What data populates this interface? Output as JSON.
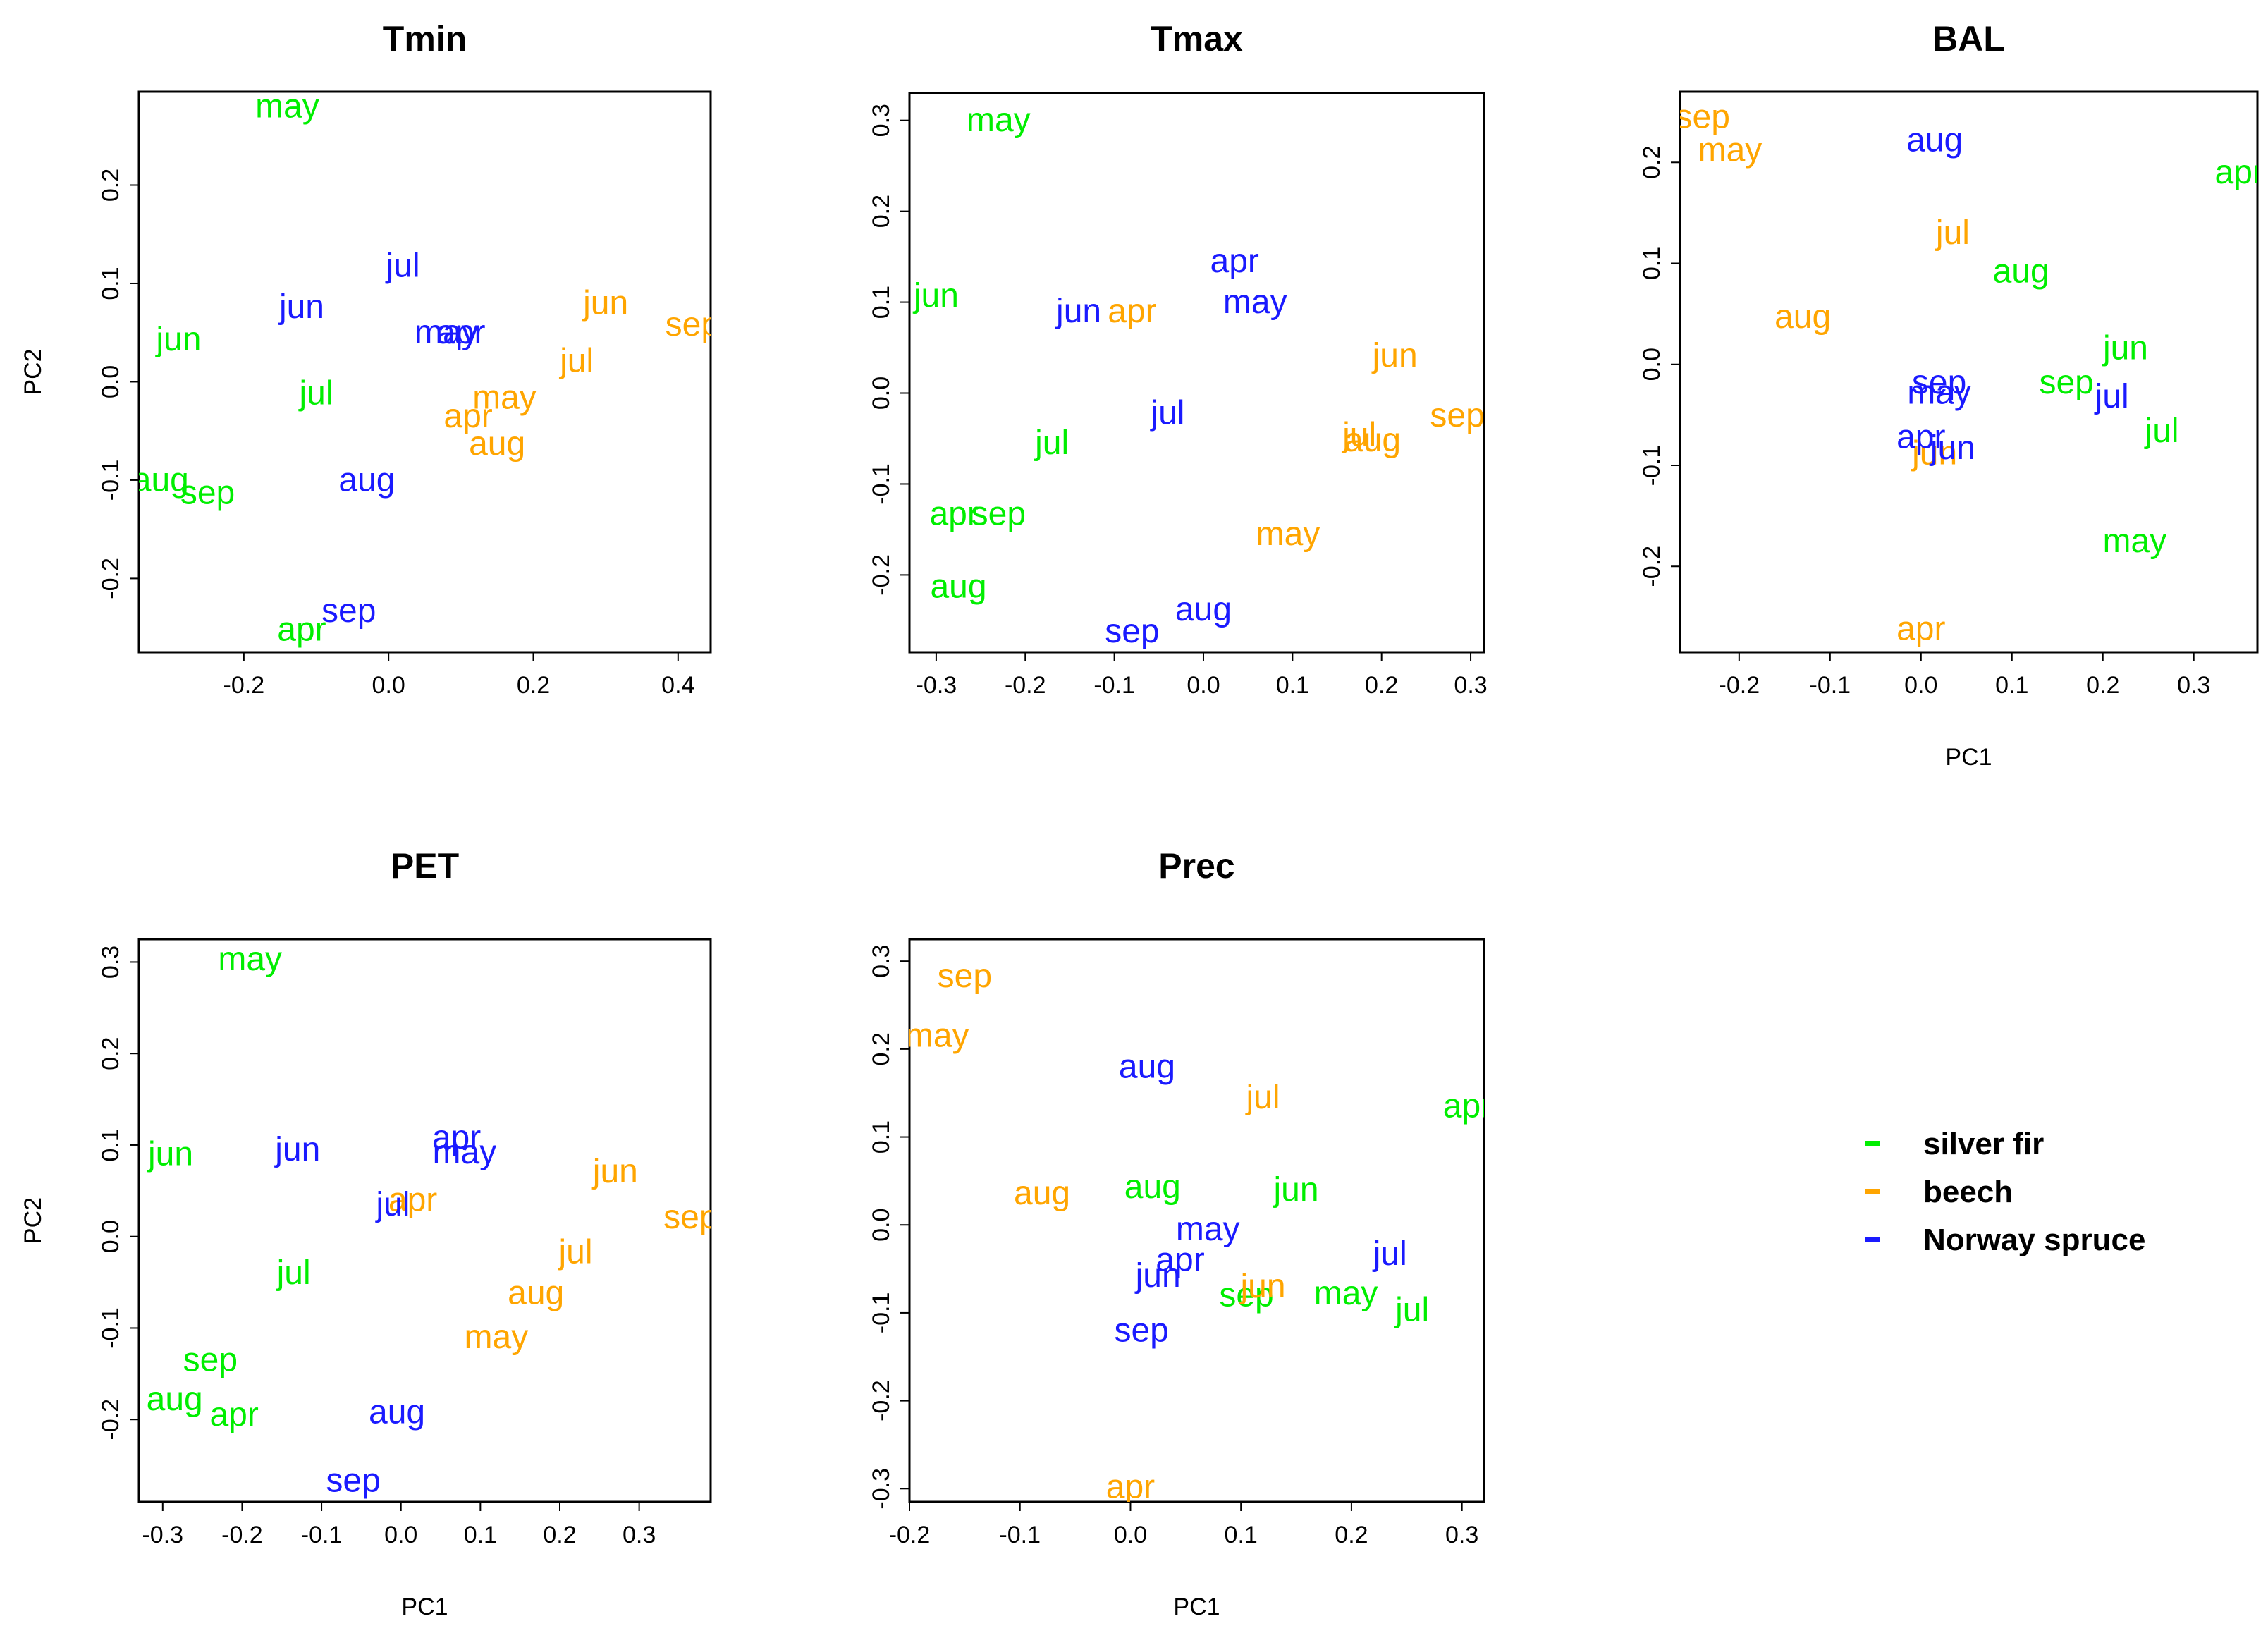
{
  "colors": {
    "silver fir": "#00ee00",
    "beech": "#ffa500",
    "Norway spruce": "#1a1aff"
  },
  "legend": {
    "items": [
      {
        "name": "silver fir",
        "color": "#00ee00"
      },
      {
        "name": "beech",
        "color": "#ffa500"
      },
      {
        "name": "Norway spruce",
        "color": "#1a1aff"
      }
    ],
    "placement": "right, bottom row"
  },
  "chart_data": [
    {
      "type": "scatter",
      "title": "Tmin",
      "xlabel": "",
      "ylabel": "PC2",
      "xlim": [
        -0.345,
        0.445
      ],
      "ylim": [
        -0.275,
        0.295
      ],
      "xticks": [
        -0.2,
        0.0,
        0.2,
        0.4
      ],
      "yticks": [
        -0.2,
        -0.1,
        0.0,
        0.1,
        0.2
      ],
      "series": [
        {
          "name": "silver fir",
          "points": [
            {
              "label": "may",
              "x": -0.14,
              "y": 0.28
            },
            {
              "label": "jun",
              "x": -0.29,
              "y": 0.043
            },
            {
              "label": "jul",
              "x": -0.1,
              "y": -0.012
            },
            {
              "label": "aug",
              "x": -0.315,
              "y": -0.1
            },
            {
              "label": "sep",
              "x": -0.25,
              "y": -0.113
            },
            {
              "label": "apr",
              "x": -0.12,
              "y": -0.252
            }
          ]
        },
        {
          "name": "beech",
          "points": [
            {
              "label": "jun",
              "x": 0.3,
              "y": 0.08
            },
            {
              "label": "sep",
              "x": 0.42,
              "y": 0.058
            },
            {
              "label": "jul",
              "x": 0.26,
              "y": 0.021
            },
            {
              "label": "may",
              "x": 0.16,
              "y": -0.016
            },
            {
              "label": "apr",
              "x": 0.11,
              "y": -0.035
            },
            {
              "label": "aug",
              "x": 0.15,
              "y": -0.063
            }
          ]
        },
        {
          "name": "Norway spruce",
          "points": [
            {
              "label": "jul",
              "x": 0.02,
              "y": 0.118
            },
            {
              "label": "jun",
              "x": -0.12,
              "y": 0.076
            },
            {
              "label": "may",
              "x": 0.08,
              "y": 0.05
            },
            {
              "label": "apr",
              "x": 0.1,
              "y": 0.05
            },
            {
              "label": "aug",
              "x": -0.03,
              "y": -0.1
            },
            {
              "label": "sep",
              "x": -0.055,
              "y": -0.233
            }
          ]
        }
      ]
    },
    {
      "type": "scatter",
      "title": "Tmax",
      "xlabel": "",
      "ylabel": "",
      "xlim": [
        -0.33,
        0.315
      ],
      "ylim": [
        -0.285,
        0.33
      ],
      "xticks": [
        -0.3,
        -0.2,
        -0.1,
        0.0,
        0.1,
        0.2,
        0.3
      ],
      "yticks": [
        -0.2,
        -0.1,
        0.0,
        0.1,
        0.2,
        0.3
      ],
      "series": [
        {
          "name": "silver fir",
          "points": [
            {
              "label": "may",
              "x": -0.23,
              "y": 0.3
            },
            {
              "label": "jun",
              "x": -0.3,
              "y": 0.107
            },
            {
              "label": "jul",
              "x": -0.17,
              "y": -0.055
            },
            {
              "label": "apr",
              "x": -0.28,
              "y": -0.133
            },
            {
              "label": "sep",
              "x": -0.23,
              "y": -0.133
            },
            {
              "label": "aug",
              "x": -0.275,
              "y": -0.213
            }
          ]
        },
        {
          "name": "beech",
          "points": [
            {
              "label": "apr",
              "x": -0.08,
              "y": 0.09
            },
            {
              "label": "jun",
              "x": 0.215,
              "y": 0.041
            },
            {
              "label": "sep",
              "x": 0.285,
              "y": -0.025
            },
            {
              "label": "jul",
              "x": 0.175,
              "y": -0.046
            },
            {
              "label": "aug",
              "x": 0.19,
              "y": -0.052
            },
            {
              "label": "may",
              "x": 0.095,
              "y": -0.155
            }
          ]
        },
        {
          "name": "Norway spruce",
          "points": [
            {
              "label": "apr",
              "x": 0.035,
              "y": 0.145
            },
            {
              "label": "may",
              "x": 0.058,
              "y": 0.1
            },
            {
              "label": "jun",
              "x": -0.14,
              "y": 0.09
            },
            {
              "label": "jul",
              "x": -0.04,
              "y": -0.022
            },
            {
              "label": "aug",
              "x": 0.0,
              "y": -0.238
            },
            {
              "label": "sep",
              "x": -0.08,
              "y": -0.262
            }
          ]
        }
      ]
    },
    {
      "type": "scatter",
      "title": "BAL",
      "xlabel": "PC1",
      "ylabel": "",
      "xlim": [
        -0.265,
        0.37
      ],
      "ylim": [
        -0.285,
        0.27
      ],
      "xticks": [
        -0.2,
        -0.1,
        0.0,
        0.1,
        0.2,
        0.3
      ],
      "yticks": [
        -0.2,
        -0.1,
        0.0,
        0.1,
        0.2
      ],
      "series": [
        {
          "name": "silver fir",
          "points": [
            {
              "label": "apr",
              "x": 0.35,
              "y": 0.19
            },
            {
              "label": "aug",
              "x": 0.11,
              "y": 0.092
            },
            {
              "label": "jun",
              "x": 0.225,
              "y": 0.016
            },
            {
              "label": "sep",
              "x": 0.16,
              "y": -0.018
            },
            {
              "label": "jul",
              "x": 0.265,
              "y": -0.066
            },
            {
              "label": "may",
              "x": 0.235,
              "y": -0.175
            }
          ]
        },
        {
          "name": "beech",
          "points": [
            {
              "label": "sep",
              "x": -0.24,
              "y": 0.245
            },
            {
              "label": "may",
              "x": -0.21,
              "y": 0.212
            },
            {
              "label": "jul",
              "x": 0.035,
              "y": 0.13
            },
            {
              "label": "aug",
              "x": -0.13,
              "y": 0.047
            },
            {
              "label": "jun",
              "x": 0.015,
              "y": -0.088
            },
            {
              "label": "apr",
              "x": 0.0,
              "y": -0.262
            }
          ]
        },
        {
          "name": "Norway spruce",
          "points": [
            {
              "label": "aug",
              "x": 0.015,
              "y": 0.222
            },
            {
              "label": "sep",
              "x": 0.02,
              "y": -0.018
            },
            {
              "label": "may",
              "x": 0.02,
              "y": -0.028
            },
            {
              "label": "jul",
              "x": 0.21,
              "y": -0.032
            },
            {
              "label": "apr",
              "x": 0.0,
              "y": -0.072
            },
            {
              "label": "jun",
              "x": 0.035,
              "y": -0.083
            }
          ]
        }
      ]
    },
    {
      "type": "scatter",
      "title": "PET",
      "xlabel": "PC1",
      "ylabel": "PC2",
      "xlim": [
        -0.33,
        0.39
      ],
      "ylim": [
        -0.29,
        0.325
      ],
      "xticks": [
        -0.3,
        -0.2,
        -0.1,
        0.0,
        0.1,
        0.2,
        0.3
      ],
      "yticks": [
        -0.2,
        -0.1,
        0.0,
        0.1,
        0.2,
        0.3
      ],
      "series": [
        {
          "name": "silver fir",
          "points": [
            {
              "label": "may",
              "x": -0.19,
              "y": 0.303
            },
            {
              "label": "jun",
              "x": -0.29,
              "y": 0.09
            },
            {
              "label": "jul",
              "x": -0.135,
              "y": -0.04
            },
            {
              "label": "sep",
              "x": -0.24,
              "y": -0.135
            },
            {
              "label": "aug",
              "x": -0.285,
              "y": -0.178
            },
            {
              "label": "apr",
              "x": -0.21,
              "y": -0.195
            }
          ]
        },
        {
          "name": "beech",
          "points": [
            {
              "label": "jun",
              "x": 0.27,
              "y": 0.071
            },
            {
              "label": "sep",
              "x": 0.365,
              "y": 0.021
            },
            {
              "label": "apr",
              "x": 0.015,
              "y": 0.04
            },
            {
              "label": "jul",
              "x": 0.22,
              "y": -0.017
            },
            {
              "label": "aug",
              "x": 0.17,
              "y": -0.062
            },
            {
              "label": "may",
              "x": 0.12,
              "y": -0.11
            }
          ]
        },
        {
          "name": "Norway spruce",
          "points": [
            {
              "label": "jun",
              "x": -0.13,
              "y": 0.095
            },
            {
              "label": "apr",
              "x": 0.07,
              "y": 0.108
            },
            {
              "label": "may",
              "x": 0.08,
              "y": 0.092
            },
            {
              "label": "jul",
              "x": -0.01,
              "y": 0.035
            },
            {
              "label": "aug",
              "x": -0.005,
              "y": -0.192
            },
            {
              "label": "sep",
              "x": -0.06,
              "y": -0.267
            }
          ]
        }
      ]
    },
    {
      "type": "scatter",
      "title": "Prec",
      "xlabel": "PC1",
      "ylabel": "",
      "xlim": [
        -0.2,
        0.32
      ],
      "ylim": [
        -0.315,
        0.325
      ],
      "xticks": [
        -0.2,
        -0.1,
        0.0,
        0.1,
        0.2,
        0.3
      ],
      "yticks": [
        -0.3,
        -0.2,
        -0.1,
        0.0,
        0.1,
        0.2,
        0.3
      ],
      "series": [
        {
          "name": "silver fir",
          "points": [
            {
              "label": "apr",
              "x": 0.305,
              "y": 0.135
            },
            {
              "label": "aug",
              "x": 0.02,
              "y": 0.043
            },
            {
              "label": "jun",
              "x": 0.15,
              "y": 0.04
            },
            {
              "label": "may",
              "x": 0.195,
              "y": -0.078
            },
            {
              "label": "sep",
              "x": 0.105,
              "y": -0.08
            },
            {
              "label": "jul",
              "x": 0.255,
              "y": -0.097
            }
          ]
        },
        {
          "name": "beech",
          "points": [
            {
              "label": "sep",
              "x": -0.15,
              "y": 0.283
            },
            {
              "label": "may",
              "x": -0.175,
              "y": 0.215
            },
            {
              "label": "jul",
              "x": 0.12,
              "y": 0.145
            },
            {
              "label": "aug",
              "x": -0.08,
              "y": 0.036
            },
            {
              "label": "jun",
              "x": 0.12,
              "y": -0.07
            },
            {
              "label": "apr",
              "x": 0.0,
              "y": -0.298
            }
          ]
        },
        {
          "name": "Norway spruce",
          "points": [
            {
              "label": "aug",
              "x": 0.015,
              "y": 0.18
            },
            {
              "label": "may",
              "x": 0.07,
              "y": -0.005
            },
            {
              "label": "apr",
              "x": 0.045,
              "y": -0.04
            },
            {
              "label": "jun",
              "x": 0.025,
              "y": -0.058
            },
            {
              "label": "jul",
              "x": 0.235,
              "y": -0.033
            },
            {
              "label": "sep",
              "x": 0.01,
              "y": -0.12
            }
          ]
        }
      ]
    }
  ]
}
